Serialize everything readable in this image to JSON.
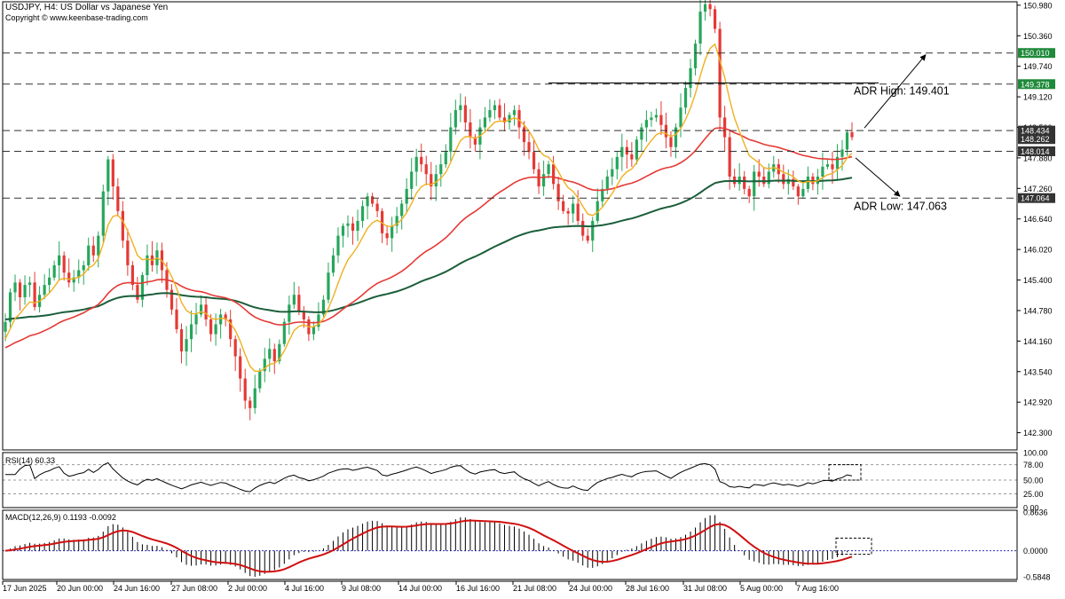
{
  "header": {
    "title": "USDJPY, H4:  US Dollar vs Japanese Yen",
    "copyright": "Copyright © www.keenbase-trading.com"
  },
  "colors": {
    "bull": "#26a65b",
    "bear": "#e53935",
    "ema_fast": "#f0b020",
    "ema_mid": "#e53935",
    "ema_slow": "#1b5e3b",
    "grid_dash": "#333333",
    "label_green": "#1f8a3a",
    "label_dark": "#333333"
  },
  "chart_data": [
    {
      "type": "candlestick",
      "symbol": "USDJPY",
      "timeframe": "H4",
      "yticks": [
        142.3,
        142.92,
        143.54,
        144.16,
        144.78,
        145.4,
        146.02,
        146.64,
        147.26,
        147.88,
        148.5,
        149.12,
        149.74,
        150.36,
        150.98
      ],
      "ytick_labels": [
        "142.300",
        "142.920",
        "143.540",
        "144.160",
        "144.780",
        "145.400",
        "146.020",
        "146.640",
        "147.260",
        "147.880",
        "148.500",
        "149.120",
        "149.740",
        "150.360",
        "150.980"
      ],
      "ylim": [
        141.95,
        151.05
      ],
      "xticks": [
        "17 Jun 2025",
        "20 Jun 00:00",
        "24 Jun 16:00",
        "27 Jun 08:00",
        "2 Jul 00:00",
        "4 Jul 16:00",
        "9 Jul 08:00",
        "14 Jul 00:00",
        "16 Jul 16:00",
        "21 Jul 08:00",
        "24 Jul 00:00",
        "28 Jul 16:00",
        "31 Jul 08:00",
        "5 Aug 00:00",
        "7 Aug 16:00"
      ],
      "price_levels": [
        {
          "value": 150.01,
          "label": "150.010",
          "style": "dashed",
          "tag": "green"
        },
        {
          "value": 149.378,
          "label": "149.378",
          "style": "dashed",
          "tag": "green"
        },
        {
          "value": 148.434,
          "label": "148.434",
          "style": "dashed",
          "tag": "dark"
        },
        {
          "value": 148.262,
          "label": "148.262",
          "style": "none",
          "tag": "dark"
        },
        {
          "value": 148.014,
          "label": "148.014",
          "style": "dashed",
          "tag": "dark"
        },
        {
          "value": 147.064,
          "label": "147.064",
          "style": "dashed",
          "tag": "dark"
        }
      ],
      "annotations": [
        {
          "text": "ADR High: 149.401",
          "value": 149.401
        },
        {
          "text": "ADR Low: 147.063",
          "value": 147.063
        }
      ],
      "series": [
        {
          "name": "close",
          "values": [
            144.55,
            145.15,
            145.35,
            145.05,
            145.3,
            145.35,
            144.85,
            145.1,
            145.3,
            145.45,
            145.7,
            145.9,
            145.55,
            145.35,
            145.45,
            145.6,
            145.7,
            146.1,
            145.9,
            146.3,
            147.2,
            147.85,
            147.3,
            146.8,
            146.2,
            145.7,
            145.3,
            145.0,
            145.5,
            145.9,
            145.7,
            146.0,
            145.6,
            145.2,
            144.8,
            144.4,
            143.95,
            144.2,
            144.5,
            144.7,
            144.9,
            144.6,
            144.3,
            144.5,
            144.7,
            144.6,
            144.2,
            143.85,
            143.4,
            142.95,
            142.8,
            143.2,
            143.55,
            143.8,
            144.0,
            143.75,
            144.1,
            144.55,
            144.9,
            145.1,
            144.75,
            144.6,
            144.3,
            144.45,
            144.7,
            145.0,
            145.55,
            145.9,
            146.3,
            146.5,
            146.55,
            146.4,
            146.6,
            146.9,
            147.1,
            146.95,
            146.8,
            146.35,
            146.25,
            146.5,
            146.7,
            146.95,
            147.25,
            147.6,
            147.9,
            147.75,
            147.55,
            147.3,
            147.55,
            147.75,
            148.0,
            148.5,
            148.85,
            148.95,
            148.6,
            148.3,
            148.15,
            148.5,
            148.7,
            148.85,
            148.95,
            148.7,
            148.6,
            148.75,
            148.85,
            148.5,
            148.2,
            148.0,
            147.65,
            147.3,
            147.55,
            147.75,
            147.35,
            147.0,
            146.8,
            146.75,
            146.95,
            146.6,
            146.3,
            146.2,
            146.6,
            147.0,
            147.25,
            147.5,
            147.65,
            147.9,
            148.1,
            147.95,
            147.85,
            148.25,
            148.5,
            148.65,
            148.7,
            148.75,
            148.55,
            148.3,
            148.1,
            148.5,
            148.9,
            149.3,
            149.7,
            150.2,
            150.85,
            151.0,
            150.9,
            150.5,
            148.7,
            148.3,
            147.5,
            147.35,
            147.5,
            147.25,
            147.1,
            147.6,
            147.5,
            147.35,
            147.6,
            147.75,
            147.55,
            147.35,
            147.45,
            147.3,
            147.1,
            147.25,
            147.5,
            147.35,
            147.5,
            147.7,
            147.75,
            147.65,
            147.9,
            148.05,
            148.4,
            148.3
          ]
        },
        {
          "name": "EMA",
          "values": []
        }
      ]
    },
    {
      "type": "line",
      "title": "RSI(14) 60.33",
      "yticks": [
        100.0,
        78.0,
        50.0,
        25.0,
        0.0
      ],
      "ytick_labels": [
        "100.00",
        "78.00",
        "50.00",
        "25.00",
        "0.00"
      ],
      "ylim": [
        0,
        100
      ]
    },
    {
      "type": "bar",
      "title": "MACD(12,26,9) 0.1193 -0.0092",
      "yticks": [
        0.8636,
        0.0,
        -0.5848
      ],
      "ytick_labels": [
        "0.8636",
        "0.0000",
        "-0.5848"
      ],
      "ylim": [
        -0.64,
        0.9
      ]
    }
  ]
}
